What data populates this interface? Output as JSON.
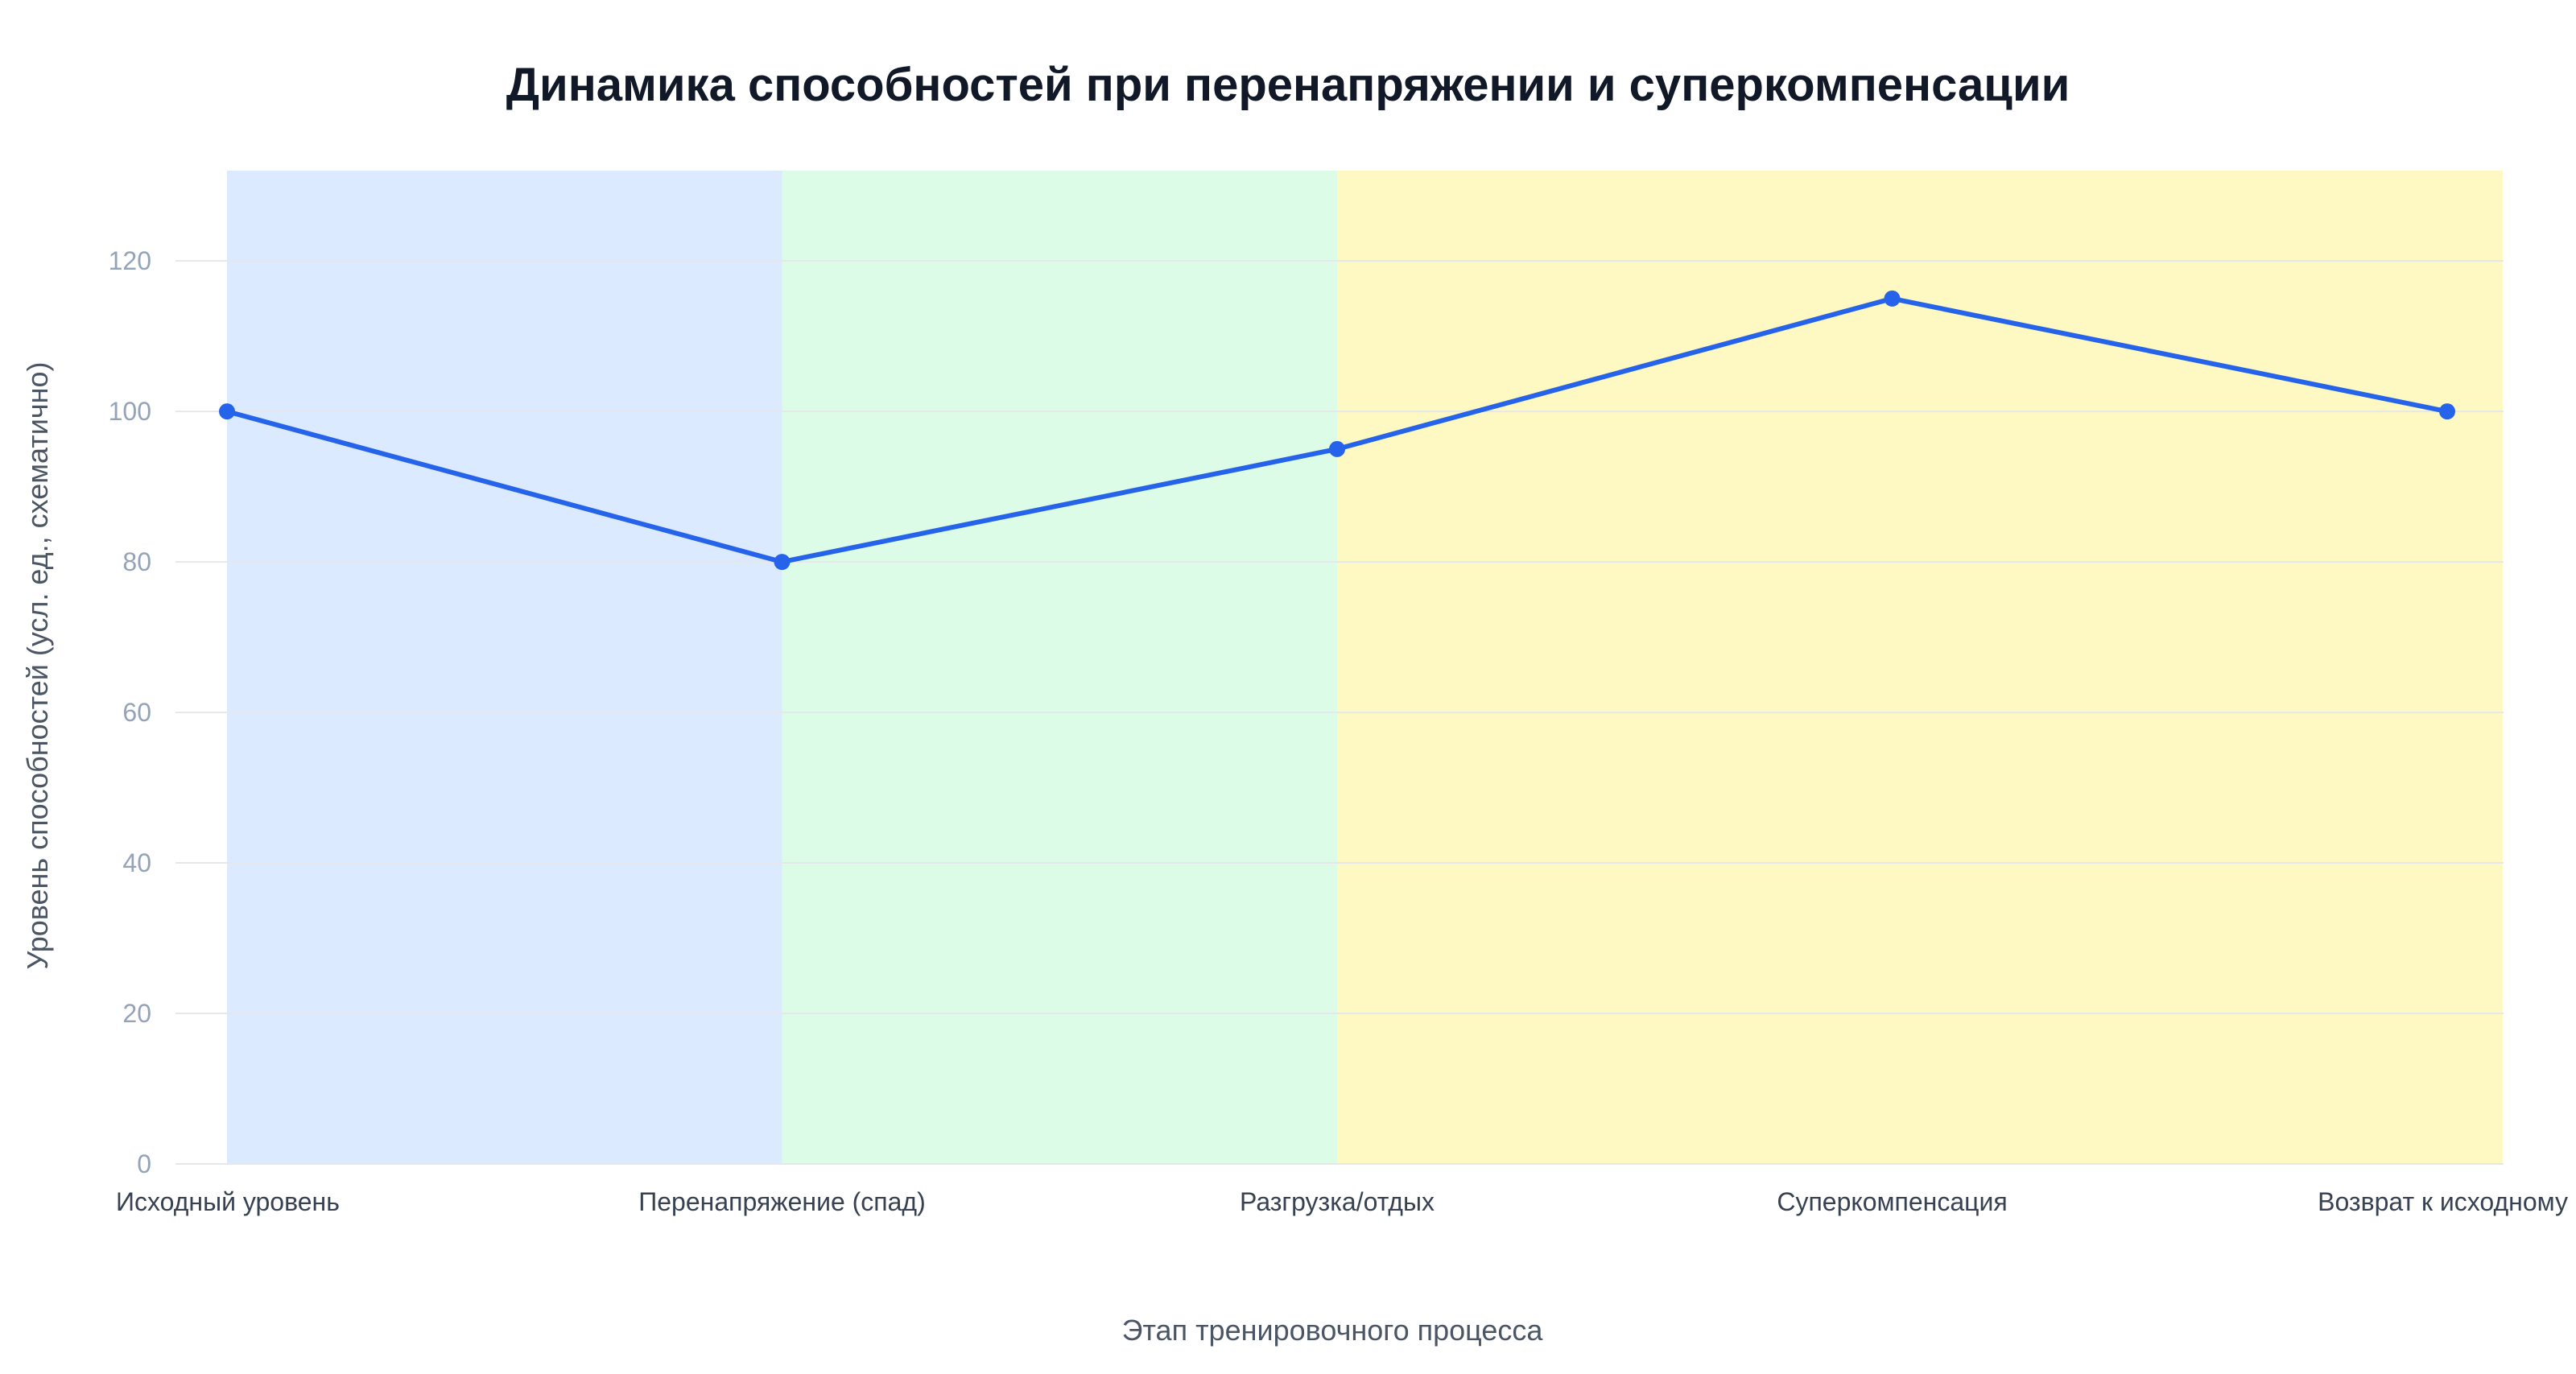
{
  "chart_data": {
    "type": "line",
    "title": "Динамика способностей при перенапряжении и суперкомпенсации",
    "xlabel": "Этап тренировочного процесса",
    "ylabel": "Уровень способностей (усл. ед., схематично)",
    "categories": [
      "Исходный уровень",
      "Перенапряжение (спад)",
      "Разгрузка/отдых",
      "Суперкомпенсация",
      "Возврат к исходному"
    ],
    "series": [
      {
        "values": [
          100,
          80,
          95,
          115,
          100
        ],
        "color": "#2563eb"
      }
    ],
    "ylim": [
      0,
      132
    ],
    "yticks": [
      0,
      20,
      40,
      60,
      80,
      100,
      120
    ],
    "grid": true,
    "bands": [
      {
        "from": 0,
        "to": 1,
        "color": "#dbeafe"
      },
      {
        "from": 1,
        "to": 2,
        "color": "#dcfce7"
      },
      {
        "from": 2,
        "to": 4.1,
        "color": "#fef9c3"
      }
    ]
  }
}
